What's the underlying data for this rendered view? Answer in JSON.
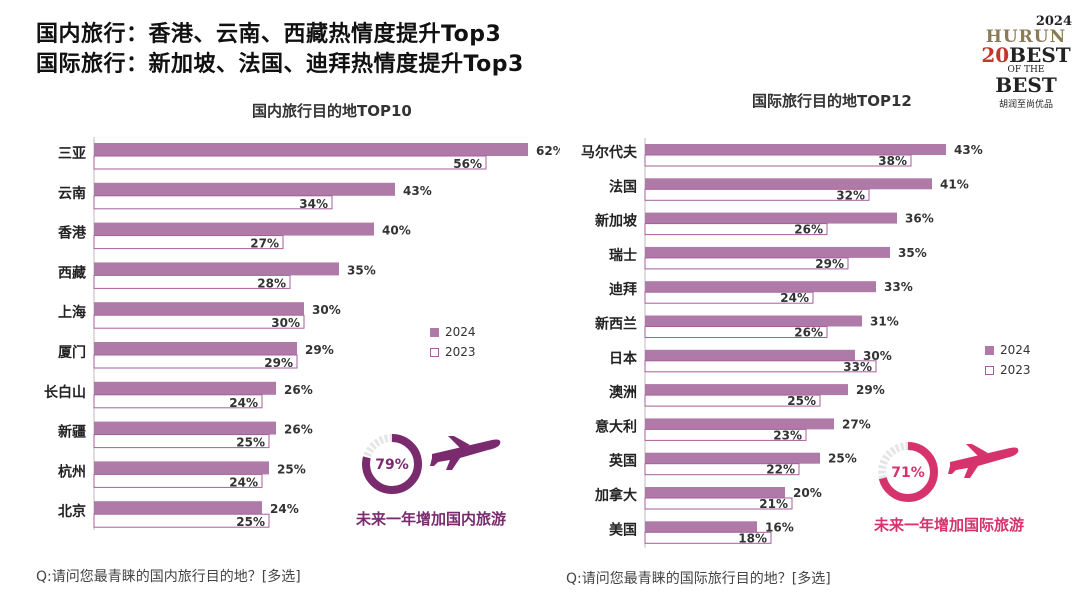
{
  "headline": {
    "line1": "国内旅行：香港、云南、西藏热情度提升Top3",
    "line2": "国际旅行：新加坡、法国、迪拜热情度提升Top3"
  },
  "logo": {
    "year": "2024",
    "brand": "HURUN",
    "line_a": "20",
    "line_b": "BEST",
    "line_c": "OF THE",
    "line_d": "BEST",
    "cn": "胡润至尚优品"
  },
  "colors": {
    "bar2024": "#b07aa8",
    "bar2023_border": "#a55f9d",
    "domestic_accent": "#7a2b6e",
    "intl_accent": "#d6336c",
    "donut_bg": "#e6e6e6"
  },
  "chart_data": [
    {
      "type": "bar",
      "orientation": "horizontal",
      "title": "国内旅行目的地TOP10",
      "categories": [
        "三亚",
        "云南",
        "香港",
        "西藏",
        "上海",
        "厦门",
        "长白山",
        "新疆",
        "杭州",
        "北京"
      ],
      "series": [
        {
          "name": "2024",
          "values": [
            62,
            43,
            40,
            35,
            30,
            29,
            26,
            26,
            25,
            24
          ]
        },
        {
          "name": "2023",
          "values": [
            56,
            34,
            27,
            28,
            30,
            29,
            24,
            25,
            24,
            25
          ]
        }
      ],
      "unit": "%",
      "legend_position": "right",
      "note": "Q:请问您最青睐的国内旅行目的地？[多选]",
      "donut": {
        "value": 79,
        "label": "79%",
        "caption": "未来一年增加国内旅游"
      }
    },
    {
      "type": "bar",
      "orientation": "horizontal",
      "title": "国际旅行目的地TOP12",
      "categories": [
        "马尔代夫",
        "法国",
        "新加坡",
        "瑞士",
        "迪拜",
        "新西兰",
        "日本",
        "澳洲",
        "意大利",
        "英国",
        "加拿大",
        "美国"
      ],
      "series": [
        {
          "name": "2024",
          "values": [
            43,
            41,
            36,
            35,
            33,
            31,
            30,
            29,
            27,
            25,
            20,
            16
          ]
        },
        {
          "name": "2023",
          "values": [
            38,
            32,
            26,
            29,
            24,
            26,
            33,
            25,
            23,
            22,
            21,
            18
          ]
        }
      ],
      "unit": "%",
      "legend_position": "right",
      "note": "Q:请问您最青睐的国际旅行目的地？[多选]",
      "donut": {
        "value": 71,
        "label": "71%",
        "caption": "未来一年增加国际旅游"
      }
    }
  ]
}
